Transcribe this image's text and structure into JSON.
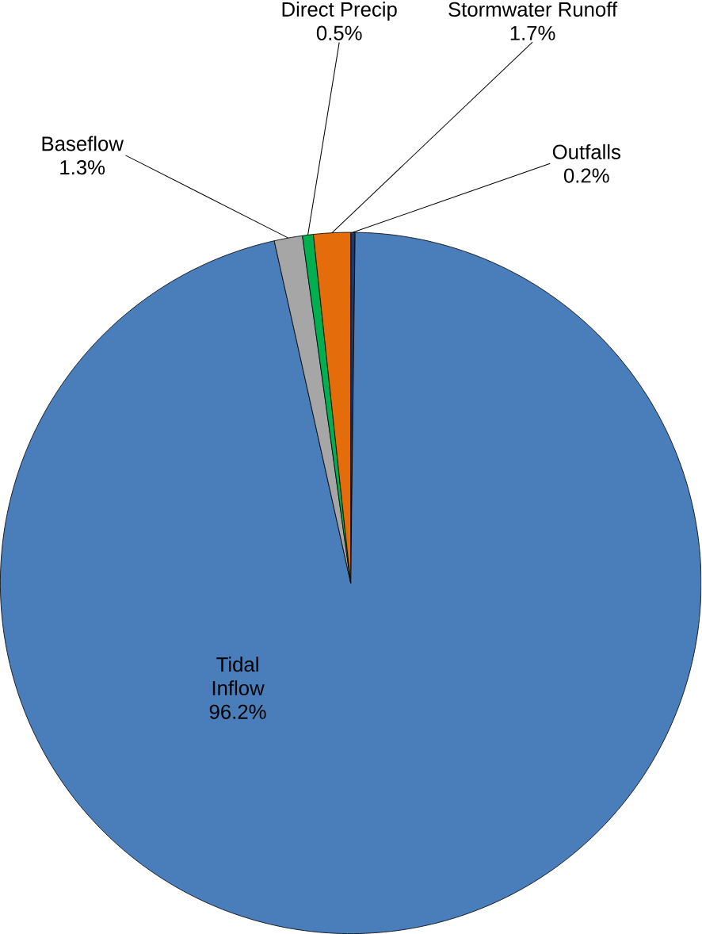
{
  "chart_data": {
    "type": "pie",
    "categories": [
      "Outfalls",
      "Tidal Inflow",
      "Baseflow",
      "Direct Precip",
      "Stormwater Runoff"
    ],
    "values": [
      0.2,
      96.2,
      1.3,
      0.5,
      1.7
    ],
    "value_labels": [
      "0.2%",
      "96.2%",
      "1.3%",
      "0.5%",
      "1.7%"
    ],
    "colors": [
      "#1f3864",
      "#4a7ebb",
      "#a6a6a6",
      "#00b050",
      "#e46c0a"
    ]
  }
}
